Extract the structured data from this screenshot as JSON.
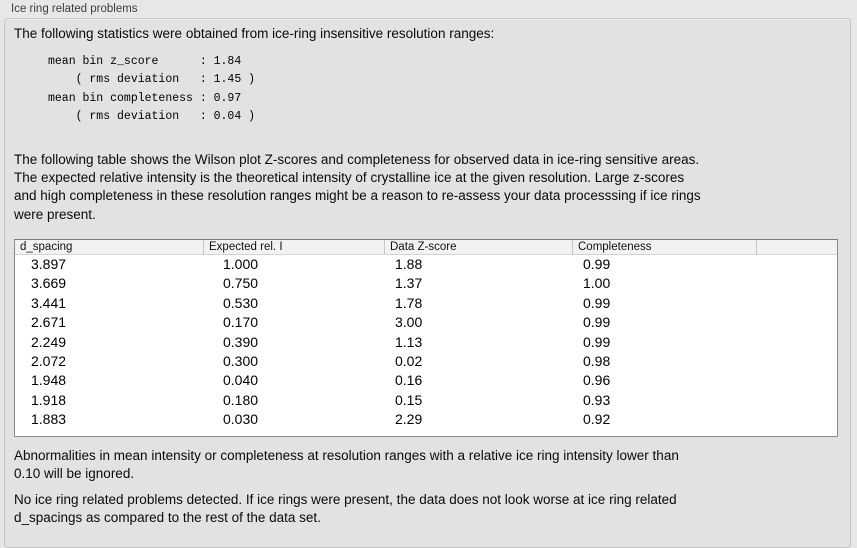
{
  "panel": {
    "title": "Ice ring related problems"
  },
  "intro": {
    "text": "The following statistics were obtained from ice-ring insensitive resolution ranges:",
    "stats_block": "mean bin z_score      : 1.84\n    ( rms deviation   : 1.45 )\nmean bin completeness : 0.97\n    ( rms deviation   : 0.04 )",
    "stats": {
      "mean_bin_z_score": "1.84",
      "z_score_rms_deviation": "1.45",
      "mean_bin_completeness": "0.97",
      "completeness_rms_deviation": "0.04"
    }
  },
  "table_intro": "The following table shows the Wilson plot Z-scores and completeness for observed data in ice-ring sensitive areas.\nThe expected relative intensity is the theoretical intensity of crystalline ice at the given resolution. Large z-scores\nand high completeness in these resolution ranges might be a reason to re-assess your data processsing if ice rings\nwere present.",
  "table": {
    "headers": [
      "d_spacing",
      "Expected rel. I",
      "Data Z-score",
      "Completeness",
      ""
    ],
    "rows": [
      [
        "3.897",
        "1.000",
        "1.88",
        "0.99",
        ""
      ],
      [
        "3.669",
        "0.750",
        "1.37",
        "1.00",
        ""
      ],
      [
        "3.441",
        "0.530",
        "1.78",
        "0.99",
        ""
      ],
      [
        "2.671",
        "0.170",
        "3.00",
        "0.99",
        ""
      ],
      [
        "2.249",
        "0.390",
        "1.13",
        "0.99",
        ""
      ],
      [
        "2.072",
        "0.300",
        "0.02",
        "0.98",
        ""
      ],
      [
        "1.948",
        "0.040",
        "0.16",
        "0.96",
        ""
      ],
      [
        "1.918",
        "0.180",
        "0.15",
        "0.93",
        ""
      ],
      [
        "1.883",
        "0.030",
        "2.29",
        "0.92",
        ""
      ]
    ]
  },
  "notes": {
    "ignore_note": "Abnormalities in mean intensity or completeness at resolution ranges with a relative ice ring intensity lower than\n0.10 will be ignored.",
    "conclusion": "No ice ring related problems detected. If ice rings were present, the data does not look worse at ice ring related\nd_spacings as compared to the rest of the data set."
  },
  "colors": {
    "page_background": "#e7e7e7",
    "box_background": "#e2e2e2",
    "box_border": "#c6c6c6",
    "table_border": "#8a8a8a",
    "table_header_background": "#f2f2f2",
    "text": "#000000"
  }
}
